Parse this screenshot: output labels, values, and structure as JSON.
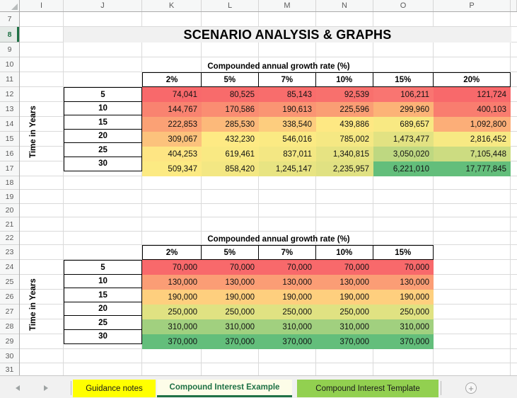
{
  "title": "SCENARIO ANALYSIS & GRAPHS",
  "grid": {
    "column_letters": [
      "I",
      "J",
      "K",
      "L",
      "M",
      "N",
      "O",
      "P"
    ],
    "row_numbers": [
      "7",
      "8",
      "9",
      "10",
      "11",
      "12",
      "13",
      "14",
      "15",
      "16",
      "17",
      "18",
      "19",
      "20",
      "21",
      "22",
      "23",
      "24",
      "25",
      "26",
      "27",
      "28",
      "29",
      "30",
      "31"
    ],
    "selected_row": "8"
  },
  "table1": {
    "caption": "Compounded annual growth rate (%)",
    "row_axis_label": "Time in Years",
    "col_headers": [
      "2%",
      "5%",
      "7%",
      "10%",
      "15%",
      "20%"
    ],
    "row_headers": [
      "5",
      "10",
      "15",
      "20",
      "25",
      "30"
    ],
    "values": [
      [
        "74,041",
        "80,525",
        "85,143",
        "92,539",
        "106,211",
        "121,724"
      ],
      [
        "144,767",
        "170,586",
        "190,613",
        "225,596",
        "299,960",
        "400,103"
      ],
      [
        "222,853",
        "285,530",
        "338,540",
        "439,886",
        "689,657",
        "1,092,800"
      ],
      [
        "309,067",
        "432,230",
        "546,016",
        "785,002",
        "1,473,477",
        "2,816,452"
      ],
      [
        "404,253",
        "619,461",
        "837,011",
        "1,340,815",
        "3,050,020",
        "7,105,448"
      ],
      [
        "509,347",
        "858,420",
        "1,245,147",
        "2,235,957",
        "6,221,010",
        "17,777,845"
      ]
    ],
    "colors": [
      [
        "#F8696B",
        "#F86B6B",
        "#F86D6C",
        "#F8706D",
        "#F97571",
        "#F8696B"
      ],
      [
        "#F98370",
        "#FA8D72",
        "#FA9573",
        "#FA9E74",
        "#FCB377",
        "#F97D6F"
      ],
      [
        "#FBA175",
        "#FCB97A",
        "#FDCD7E",
        "#FEE883",
        "#F8E983",
        "#FCAE78"
      ],
      [
        "#FCC27C",
        "#FEEA84",
        "#FBEA83",
        "#F5E883",
        "#E2E282",
        "#F7E983"
      ],
      [
        "#FEE583",
        "#F9E983",
        "#F3E783",
        "#E6E382",
        "#BED881",
        "#CCDC81"
      ],
      [
        "#FCEA83",
        "#F3E783",
        "#E8E482",
        "#E0E182",
        "#63BE7B",
        "#63BE7B"
      ]
    ]
  },
  "table2": {
    "caption": "Compounded annual growth rate (%)",
    "row_axis_label": "Time in Years",
    "col_headers": [
      "2%",
      "5%",
      "7%",
      "10%",
      "15%"
    ],
    "row_headers": [
      "5",
      "10",
      "15",
      "20",
      "25",
      "30"
    ],
    "values": [
      [
        "70,000",
        "70,000",
        "70,000",
        "70,000",
        "70,000"
      ],
      [
        "130,000",
        "130,000",
        "130,000",
        "130,000",
        "130,000"
      ],
      [
        "190,000",
        "190,000",
        "190,000",
        "190,000",
        "190,000"
      ],
      [
        "250,000",
        "250,000",
        "250,000",
        "250,000",
        "250,000"
      ],
      [
        "310,000",
        "310,000",
        "310,000",
        "310,000",
        "310,000"
      ],
      [
        "370,000",
        "370,000",
        "370,000",
        "370,000",
        "370,000"
      ]
    ],
    "colors": [
      [
        "#F8696B",
        "#F8696B",
        "#F8696B",
        "#F8696B",
        "#F8696B"
      ],
      [
        "#FB9D75",
        "#FB9D75",
        "#FB9D75",
        "#FB9D75",
        "#FB9D75"
      ],
      [
        "#FECF7E",
        "#FECF7E",
        "#FECF7E",
        "#FECF7E",
        "#FECF7E"
      ],
      [
        "#E0E282",
        "#E0E282",
        "#E0E282",
        "#E0E282",
        "#E0E282"
      ],
      [
        "#A1D07F",
        "#A1D07F",
        "#A1D07F",
        "#A1D07F",
        "#A1D07F"
      ],
      [
        "#63BE7B",
        "#63BE7B",
        "#63BE7B",
        "#63BE7B",
        "#63BE7B"
      ]
    ]
  },
  "tab_bar": {
    "tabs": [
      {
        "label": "Guidance notes",
        "bg": "#FFFF00",
        "active": false
      },
      {
        "label": "Compound Interest Example",
        "bg": "#FDFDE8",
        "active": true
      },
      {
        "label": "Compound Interest Template",
        "bg": "#92D050",
        "active": false
      }
    ],
    "add_sheet_label": "+"
  },
  "colors": {
    "accent_green": "#1E7145",
    "heat_min": "#F8696B",
    "heat_mid": "#FFEB84",
    "heat_max": "#63BE7B",
    "title_band_bg": "#F1F1F1",
    "note_triangle": "#E0301E"
  }
}
